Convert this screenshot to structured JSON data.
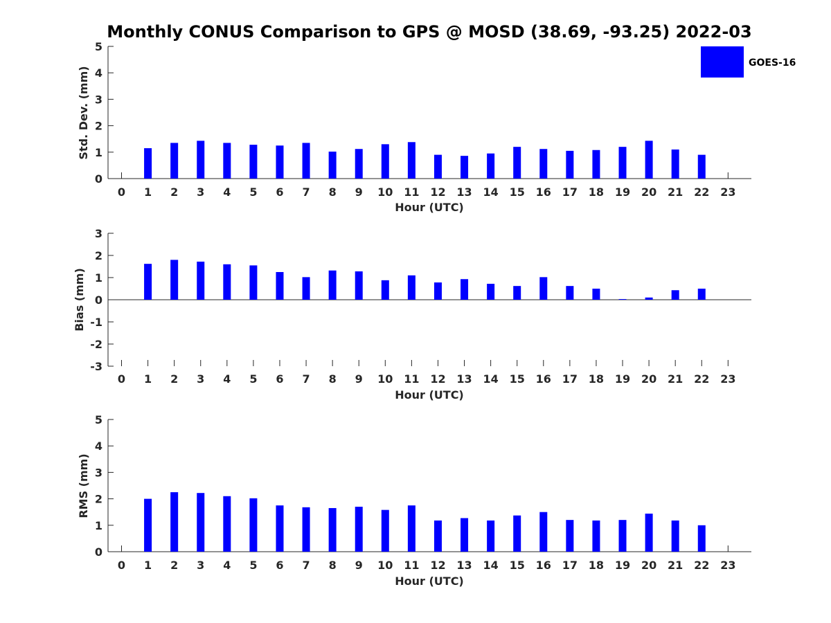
{
  "title": "Monthly CONUS Comparison to GPS @ MOSD (38.69, -93.25) 2022-03",
  "legend": {
    "label": "GOES-16",
    "color": "#0000ff"
  },
  "chart_data": [
    {
      "type": "bar",
      "xlabel": "Hour (UTC)",
      "ylabel": "Std. Dev. (mm)",
      "ylim": [
        0,
        5
      ],
      "yticks": [
        0,
        1,
        2,
        3,
        4,
        5
      ],
      "categories": [
        "0",
        "1",
        "2",
        "3",
        "4",
        "5",
        "6",
        "7",
        "8",
        "9",
        "10",
        "11",
        "12",
        "13",
        "14",
        "15",
        "16",
        "17",
        "18",
        "19",
        "20",
        "21",
        "22",
        "23"
      ],
      "series": [
        {
          "name": "GOES-16",
          "color": "#0000ff",
          "values": [
            null,
            1.15,
            1.35,
            1.43,
            1.35,
            1.28,
            1.25,
            1.35,
            1.02,
            1.12,
            1.3,
            1.38,
            0.9,
            0.86,
            0.95,
            1.2,
            1.12,
            1.05,
            1.08,
            1.2,
            1.43,
            1.1,
            0.9,
            null
          ]
        }
      ]
    },
    {
      "type": "bar",
      "xlabel": "Hour (UTC)",
      "ylabel": "Bias (mm)",
      "ylim": [
        -3,
        3
      ],
      "yticks": [
        -3,
        -2,
        -1,
        0,
        1,
        2,
        3
      ],
      "categories": [
        "0",
        "1",
        "2",
        "3",
        "4",
        "5",
        "6",
        "7",
        "8",
        "9",
        "10",
        "11",
        "12",
        "13",
        "14",
        "15",
        "16",
        "17",
        "18",
        "19",
        "20",
        "21",
        "22",
        "23"
      ],
      "series": [
        {
          "name": "GOES-16",
          "color": "#0000ff",
          "values": [
            null,
            1.62,
            1.8,
            1.72,
            1.6,
            1.55,
            1.25,
            1.02,
            1.32,
            1.28,
            0.88,
            1.1,
            0.78,
            0.93,
            0.72,
            0.62,
            1.02,
            0.62,
            0.5,
            0.03,
            0.1,
            0.43,
            0.5,
            null
          ]
        }
      ]
    },
    {
      "type": "bar",
      "xlabel": "Hour (UTC)",
      "ylabel": "RMS (mm)",
      "ylim": [
        0,
        5
      ],
      "yticks": [
        0,
        1,
        2,
        3,
        4,
        5
      ],
      "categories": [
        "0",
        "1",
        "2",
        "3",
        "4",
        "5",
        "6",
        "7",
        "8",
        "9",
        "10",
        "11",
        "12",
        "13",
        "14",
        "15",
        "16",
        "17",
        "18",
        "19",
        "20",
        "21",
        "22",
        "23"
      ],
      "series": [
        {
          "name": "GOES-16",
          "color": "#0000ff",
          "values": [
            null,
            2.0,
            2.25,
            2.22,
            2.1,
            2.02,
            1.75,
            1.68,
            1.65,
            1.7,
            1.58,
            1.75,
            1.18,
            1.27,
            1.18,
            1.37,
            1.5,
            1.2,
            1.18,
            1.2,
            1.44,
            1.18,
            1.0,
            null
          ]
        }
      ]
    }
  ]
}
